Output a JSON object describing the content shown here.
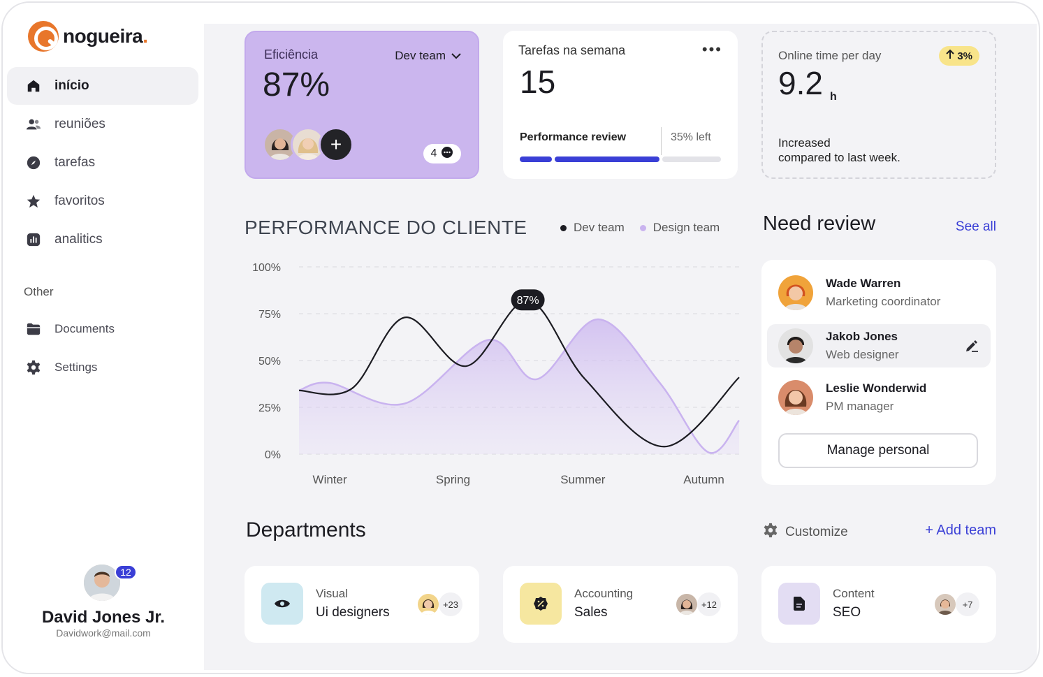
{
  "brand": {
    "name": "nogueira",
    "dot": ".",
    "accent": "#e8762b"
  },
  "nav": {
    "main": [
      {
        "label": "início",
        "icon": "home-icon",
        "active": true
      },
      {
        "label": "reuniões",
        "icon": "users-icon"
      },
      {
        "label": "tarefas",
        "icon": "compass-icon"
      },
      {
        "label": "favoritos",
        "icon": "star-icon"
      },
      {
        "label": "analitics",
        "icon": "chart-icon"
      }
    ],
    "group_label": "Other",
    "other": [
      {
        "label": "Documents",
        "icon": "folder-icon"
      },
      {
        "label": "Settings",
        "icon": "gear-icon"
      }
    ]
  },
  "profile": {
    "name": "David Jones Jr.",
    "email": "Davidwork@mail.com",
    "badge": "12"
  },
  "efficiency": {
    "label": "Eficiência",
    "team": "Dev team",
    "value": "87%",
    "plus": "+",
    "comments": "4"
  },
  "tasks": {
    "label": "Tarefas na semana",
    "value": "15",
    "more": "•••",
    "perf_label": "Performance review",
    "left_label": "35% left",
    "progress": 0.65
  },
  "online": {
    "label": "Online time per day",
    "badge": "3%",
    "value": "9.2",
    "unit": "h",
    "note_line1": "Increased",
    "note_line2": "compared to last week."
  },
  "chart": {
    "title": "PERFORMANCE DO CLIENTE",
    "tooltip": "87%",
    "colors": {
      "dev": "#1c1c22",
      "design": "#c9b3ef"
    }
  },
  "chart_data": {
    "type": "line",
    "categories": [
      "Winter",
      "Spring",
      "Summer",
      "Autumn"
    ],
    "ylim": [
      0,
      100
    ],
    "yticks": [
      "100%",
      "75%",
      "50%",
      "25%",
      "0%"
    ],
    "grid": true,
    "legend_position": "top-right",
    "series": [
      {
        "name": "Dev team",
        "x": [
          0,
          0.12,
          0.24,
          0.38,
          0.52,
          0.65,
          0.83,
          1.0
        ],
        "values": [
          34,
          35,
          73,
          47,
          82,
          40,
          4,
          41
        ]
      },
      {
        "name": "Design team",
        "x": [
          0,
          0.07,
          0.24,
          0.43,
          0.54,
          0.68,
          0.82,
          0.93,
          1.0
        ],
        "values": [
          34,
          38,
          27,
          61,
          40,
          72,
          38,
          1,
          18
        ]
      }
    ]
  },
  "review": {
    "title": "Need review",
    "see_all": "See all",
    "people": [
      {
        "name": "Wade Warren",
        "role": "Marketing coordinator"
      },
      {
        "name": "Jakob Jones",
        "role": "Web designer"
      },
      {
        "name": "Leslie Wonderwid",
        "role": "PM manager"
      }
    ],
    "manage_label": "Manage personal"
  },
  "departments": {
    "title": "Departments",
    "customize": "Customize",
    "add": "+ Add team",
    "items": [
      {
        "category": "Visual",
        "name": "Ui designers",
        "count": "+23",
        "icon": "eye-icon",
        "color": "#cfe9f1"
      },
      {
        "category": "Accounting",
        "name": "Sales",
        "count": "+12",
        "icon": "percent-badge-icon",
        "color": "#f6e7a0"
      },
      {
        "category": "Content",
        "name": "SEO",
        "count": "+7",
        "icon": "document-icon",
        "color": "#e3ddf3"
      }
    ]
  }
}
